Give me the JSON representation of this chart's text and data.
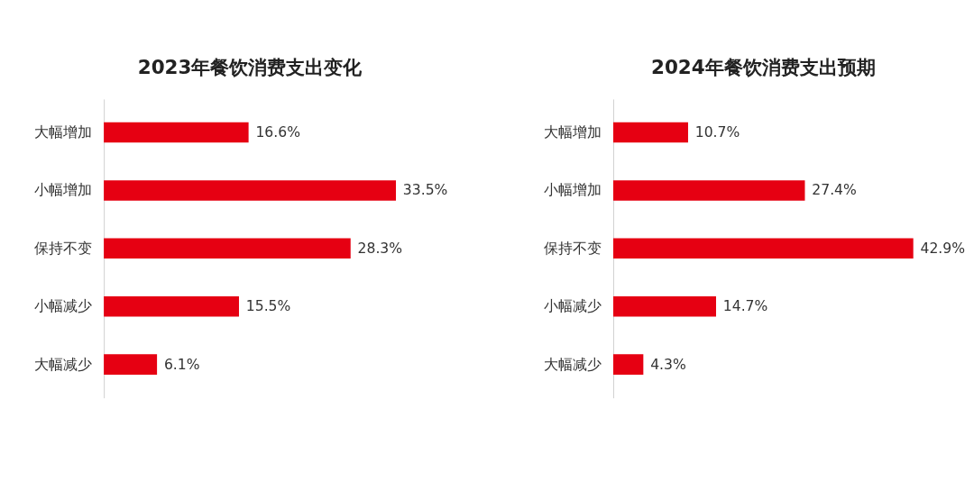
{
  "chart_data": [
    {
      "type": "bar",
      "orientation": "horizontal",
      "title": "2023年餐饮消费支出变化",
      "categories": [
        "大幅增加",
        "小幅增加",
        "保持不变",
        "小幅减少",
        "大幅减少"
      ],
      "values": [
        16.6,
        33.5,
        28.3,
        15.5,
        6.1
      ],
      "value_labels": [
        "16.6%",
        "33.5%",
        "28.3%",
        "15.5%",
        "6.1%"
      ],
      "color": "#e60012",
      "grid": false
    },
    {
      "type": "bar",
      "orientation": "horizontal",
      "title": "2024年餐饮消费支出预期",
      "categories": [
        "大幅增加",
        "小幅增加",
        "保持不变",
        "小幅减少",
        "大幅减少"
      ],
      "values": [
        10.7,
        27.4,
        42.9,
        14.7,
        4.3
      ],
      "value_labels": [
        "10.7%",
        "27.4%",
        "42.9%",
        "14.7%",
        "4.3%"
      ],
      "color": "#e60012",
      "grid": false
    }
  ]
}
